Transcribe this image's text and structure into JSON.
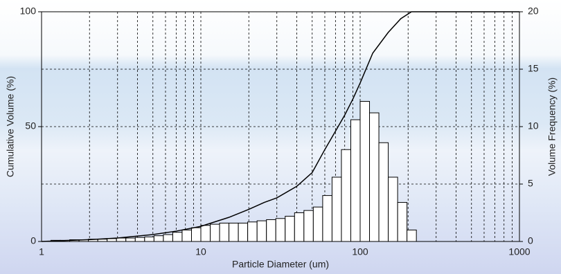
{
  "chart_data": {
    "type": "combo",
    "x_label": "Particle Diameter (um)",
    "y_label": "Cumulative Volume (%)",
    "y2_label": "Volume Frequency (%)",
    "log_x": true,
    "grid": true,
    "minor_grid": true,
    "xlim": [
      1,
      1000
    ],
    "xticks": [
      1,
      10,
      100,
      1000
    ],
    "ylim": [
      0,
      100
    ],
    "yticks": [
      0,
      50,
      100
    ],
    "y2lim": [
      0,
      20
    ],
    "y2ticks": [
      0,
      5,
      10,
      15,
      20
    ],
    "series": [
      {
        "type": "histogram",
        "axis": "y2",
        "color": "#ffffff",
        "bins": [
          1.145,
          1.311,
          1.501,
          1.719,
          1.968,
          2.254,
          2.581,
          2.955,
          3.384,
          3.875,
          4.437,
          5.081,
          5.818,
          6.662,
          7.628,
          8.735,
          10,
          11.45,
          13.11,
          15.01,
          17.19,
          19.68,
          22.54,
          25.81,
          29.55,
          33.84,
          38.75,
          44.37,
          50.81,
          58.18,
          66.62,
          76.28,
          87.35,
          100,
          114.5,
          131.1,
          150.1,
          171.9,
          196.8,
          225.4
        ],
        "values": [
          0.1,
          0.1,
          0.15,
          0.15,
          0.2,
          0.2,
          0.25,
          0.3,
          0.3,
          0.35,
          0.4,
          0.5,
          0.6,
          0.8,
          1.0,
          1.2,
          1.4,
          1.5,
          1.6,
          1.6,
          1.6,
          1.7,
          1.8,
          1.9,
          2.0,
          2.2,
          2.5,
          2.7,
          3.0,
          4.0,
          5.6,
          8.0,
          10.6,
          12.2,
          11.2,
          8.6,
          5.6,
          3.4,
          1.0
        ]
      },
      {
        "type": "line",
        "axis": "y",
        "color": "#000000",
        "x": [
          1,
          2,
          3,
          5,
          7,
          10,
          15,
          20,
          25,
          30,
          40,
          50,
          60,
          70,
          80,
          90,
          100,
          120,
          150,
          180,
          210,
          1000
        ],
        "values": [
          0,
          0.8,
          1.5,
          3,
          4.5,
          6.6,
          10.5,
          14,
          17,
          19,
          24,
          30,
          40,
          48,
          55,
          62,
          69,
          82,
          91,
          97,
          100,
          100
        ]
      }
    ]
  }
}
